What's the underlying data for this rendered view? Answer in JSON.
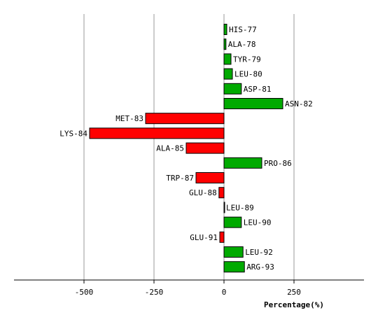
{
  "chart_data": {
    "type": "bar",
    "orientation": "horizontal",
    "xlabel": "Percentage(%)",
    "xlim": [
      -750,
      500
    ],
    "xticks": [
      -500,
      -250,
      0,
      250
    ],
    "xtick_labels": [
      "-500",
      "-250",
      "0",
      "250"
    ],
    "grid": true,
    "colors": {
      "positive": "#00aa00",
      "negative": "#ff0000",
      "grid": "#999999",
      "outline": "#000000"
    },
    "categories": [
      "HIS-77",
      "ALA-78",
      "TYR-79",
      "LEU-80",
      "ASP-81",
      "ASN-82",
      "MET-83",
      "LYS-84",
      "ALA-85",
      "PRO-86",
      "TRP-87",
      "GLU-88",
      "LEU-89",
      "LEU-90",
      "GLU-91",
      "LEU-92",
      "ARG-93"
    ],
    "values": [
      10,
      7,
      25,
      30,
      62,
      210,
      -280,
      -480,
      -135,
      135,
      -100,
      -18,
      0,
      62,
      -15,
      68,
      73
    ]
  }
}
